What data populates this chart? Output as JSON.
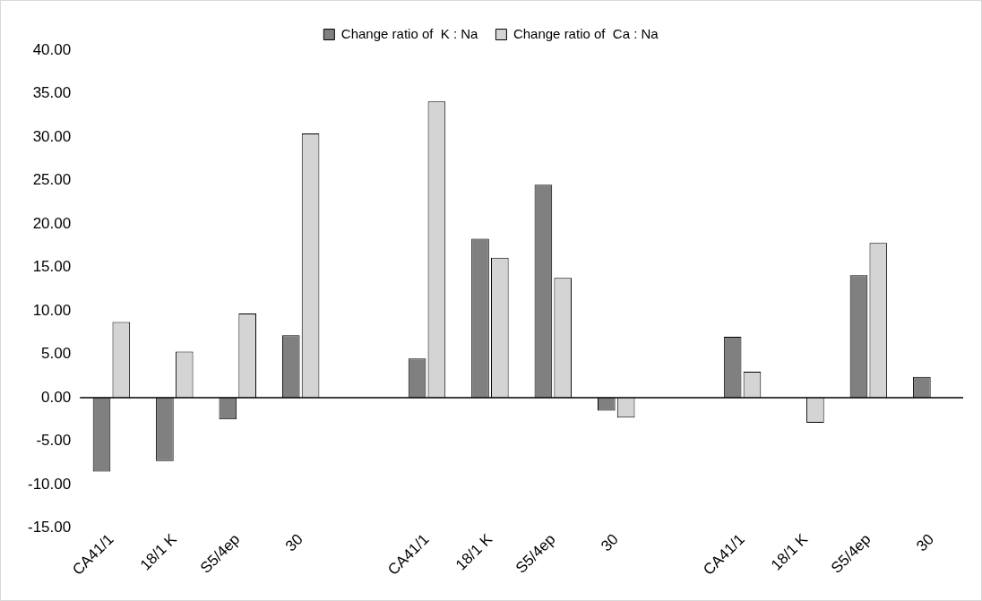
{
  "chart_data": {
    "type": "bar",
    "categories": [
      "CA41/1",
      "18/1 K",
      "S5/4ep",
      "30",
      null,
      "CA41/1",
      "18/1 K",
      "S5/4ep",
      "30",
      null,
      "CA41/1",
      "18/1 K",
      "S5/4ep",
      "30"
    ],
    "series": [
      {
        "name": "Change ratio of  K : Na",
        "color": "#808080",
        "values": [
          -8.5,
          -7.3,
          -2.5,
          7.2,
          null,
          4.5,
          18.3,
          24.5,
          -1.5,
          null,
          7.0,
          null,
          14.1,
          2.4
        ]
      },
      {
        "name": "Change ratio of  Ca : Na",
        "color": "#d4d4d4",
        "values": [
          8.7,
          5.3,
          9.7,
          30.4,
          null,
          34.1,
          16.1,
          13.8,
          -2.3,
          null,
          3.0,
          -2.9,
          17.8,
          null
        ]
      }
    ],
    "ylim": [
      -15,
      40
    ],
    "yticks": [
      {
        "value": -15,
        "label": "-15.00"
      },
      {
        "value": -10,
        "label": "-10.00"
      },
      {
        "value": -5,
        "label": "-5.00"
      },
      {
        "value": 0,
        "label": "0.00"
      },
      {
        "value": 5,
        "label": "5.00"
      },
      {
        "value": 10,
        "label": "10.00"
      },
      {
        "value": 15,
        "label": "15.00"
      },
      {
        "value": 20,
        "label": "20.00"
      },
      {
        "value": 25,
        "label": "25.00"
      },
      {
        "value": 30,
        "label": "30.00"
      },
      {
        "value": 35,
        "label": "35.00"
      },
      {
        "value": 40,
        "label": "40.00"
      }
    ],
    "legend": "top"
  }
}
